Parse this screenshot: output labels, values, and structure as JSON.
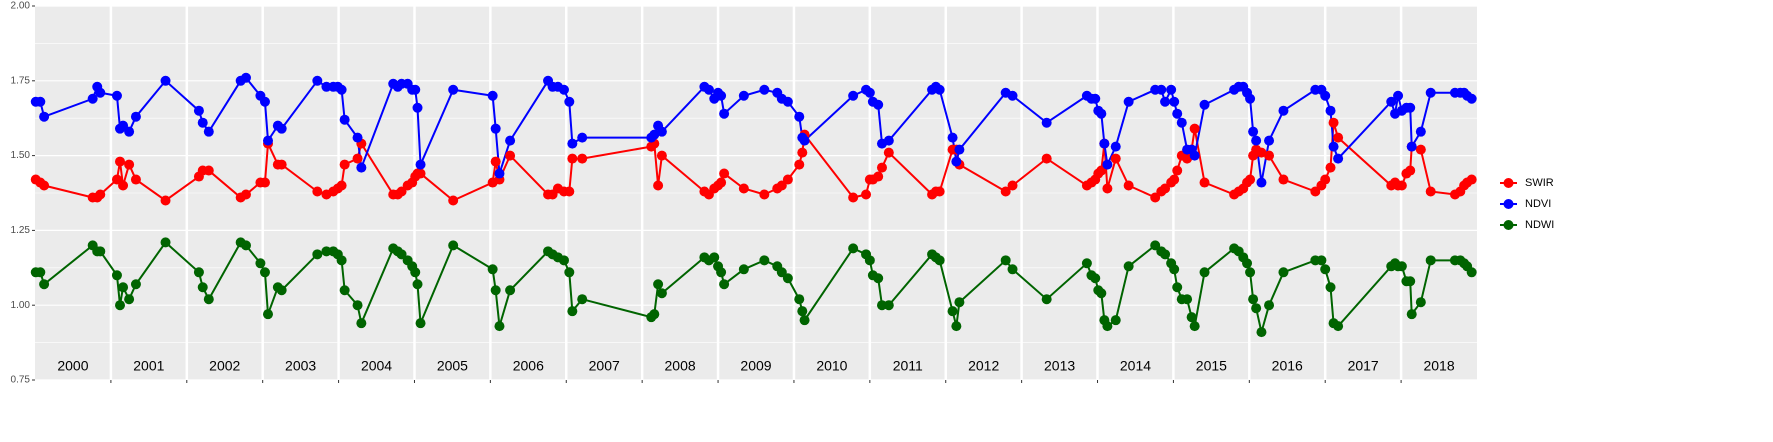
{
  "chart_data": {
    "type": "line",
    "x": [
      2000.01,
      2000.07,
      2000.12,
      2000.76,
      2000.82,
      2000.86,
      2001.08,
      2001.12,
      2001.16,
      2001.24,
      2001.33,
      2001.72,
      2002.16,
      2002.21,
      2002.29,
      2002.71,
      2002.78,
      2002.97,
      2003.03,
      2003.07,
      2003.2,
      2003.25,
      2003.72,
      2003.84,
      2003.93,
      2003.99,
      2004.04,
      2004.08,
      2004.25,
      2004.3,
      2004.72,
      2004.78,
      2004.83,
      2004.91,
      2004.97,
      2005.01,
      2005.04,
      2005.08,
      2005.51,
      2006.03,
      2006.07,
      2006.12,
      2006.26,
      2006.76,
      2006.82,
      2006.89,
      2006.97,
      2007.04,
      2007.08,
      2007.21,
      2008.12,
      2008.16,
      2008.21,
      2008.26,
      2008.82,
      2008.88,
      2008.95,
      2009.0,
      2009.04,
      2009.08,
      2009.34,
      2009.61,
      2009.78,
      2009.84,
      2009.92,
      2010.07,
      2010.11,
      2010.14,
      2010.78,
      2010.95,
      2011.0,
      2011.04,
      2011.11,
      2011.16,
      2011.25,
      2011.82,
      2011.87,
      2011.92,
      2012.09,
      2012.14,
      2012.18,
      2012.79,
      2012.88,
      2013.33,
      2013.86,
      2013.92,
      2013.97,
      2014.01,
      2014.05,
      2014.09,
      2014.13,
      2014.24,
      2014.41,
      2014.76,
      2014.84,
      2014.89,
      2014.97,
      2015.01,
      2015.05,
      2015.11,
      2015.18,
      2015.24,
      2015.28,
      2015.41,
      2015.8,
      2015.86,
      2015.92,
      2015.97,
      2016.01,
      2016.05,
      2016.09,
      2016.16,
      2016.26,
      2016.45,
      2016.87,
      2016.95,
      2017.0,
      2017.07,
      2017.11,
      2017.17,
      2017.87,
      2017.92,
      2017.96,
      2018.01,
      2018.07,
      2018.12,
      2018.14,
      2018.26,
      2018.39,
      2018.71,
      2018.78,
      2018.83,
      2018.87,
      2018.93
    ],
    "series": [
      {
        "name": "SWIR",
        "color": "#ff0000",
        "values": [
          1.42,
          1.41,
          1.4,
          1.36,
          1.36,
          1.37,
          1.42,
          1.48,
          1.4,
          1.47,
          1.42,
          1.35,
          1.43,
          1.45,
          1.45,
          1.36,
          1.37,
          1.41,
          1.41,
          1.54,
          1.47,
          1.47,
          1.38,
          1.37,
          1.38,
          1.39,
          1.4,
          1.47,
          1.49,
          1.54,
          1.37,
          1.37,
          1.38,
          1.4,
          1.41,
          1.43,
          1.44,
          1.44,
          1.35,
          1.41,
          1.48,
          1.42,
          1.5,
          1.37,
          1.37,
          1.39,
          1.38,
          1.38,
          1.49,
          1.49,
          1.53,
          1.54,
          1.4,
          1.5,
          1.38,
          1.37,
          1.39,
          1.4,
          1.41,
          1.44,
          1.39,
          1.37,
          1.39,
          1.4,
          1.42,
          1.47,
          1.51,
          1.57,
          1.36,
          1.37,
          1.42,
          1.42,
          1.43,
          1.46,
          1.51,
          1.37,
          1.38,
          1.38,
          1.52,
          1.52,
          1.47,
          1.38,
          1.4,
          1.49,
          1.4,
          1.41,
          1.42,
          1.44,
          1.45,
          1.54,
          1.39,
          1.49,
          1.4,
          1.36,
          1.38,
          1.39,
          1.41,
          1.42,
          1.45,
          1.5,
          1.49,
          1.52,
          1.59,
          1.41,
          1.37,
          1.38,
          1.39,
          1.41,
          1.42,
          1.5,
          1.52,
          1.51,
          1.5,
          1.42,
          1.38,
          1.4,
          1.42,
          1.46,
          1.61,
          1.56,
          1.4,
          1.41,
          1.4,
          1.4,
          1.44,
          1.45,
          1.53,
          1.52,
          1.38,
          1.37,
          1.38,
          1.4,
          1.41,
          1.42
        ]
      },
      {
        "name": "NDVI",
        "color": "#0000ff",
        "values": [
          1.68,
          1.68,
          1.63,
          1.69,
          1.73,
          1.71,
          1.7,
          1.59,
          1.6,
          1.58,
          1.63,
          1.75,
          1.65,
          1.61,
          1.58,
          1.75,
          1.76,
          1.7,
          1.68,
          1.55,
          1.6,
          1.59,
          1.75,
          1.73,
          1.73,
          1.73,
          1.72,
          1.62,
          1.56,
          1.46,
          1.74,
          1.73,
          1.74,
          1.74,
          1.72,
          1.72,
          1.66,
          1.47,
          1.72,
          1.7,
          1.59,
          1.44,
          1.55,
          1.75,
          1.73,
          1.73,
          1.72,
          1.68,
          1.54,
          1.56,
          1.56,
          1.57,
          1.6,
          1.58,
          1.73,
          1.72,
          1.69,
          1.71,
          1.7,
          1.64,
          1.7,
          1.72,
          1.71,
          1.69,
          1.68,
          1.63,
          1.56,
          1.55,
          1.7,
          1.72,
          1.71,
          1.68,
          1.67,
          1.54,
          1.55,
          1.72,
          1.73,
          1.72,
          1.56,
          1.48,
          1.52,
          1.71,
          1.7,
          1.61,
          1.7,
          1.69,
          1.69,
          1.65,
          1.64,
          1.54,
          1.47,
          1.53,
          1.68,
          1.72,
          1.72,
          1.68,
          1.72,
          1.68,
          1.64,
          1.61,
          1.52,
          1.52,
          1.5,
          1.67,
          1.72,
          1.73,
          1.73,
          1.71,
          1.69,
          1.58,
          1.55,
          1.41,
          1.55,
          1.65,
          1.72,
          1.72,
          1.7,
          1.65,
          1.53,
          1.49,
          1.68,
          1.64,
          1.7,
          1.65,
          1.66,
          1.66,
          1.53,
          1.58,
          1.71,
          1.71,
          1.71,
          1.71,
          1.7,
          1.69
        ]
      },
      {
        "name": "NDWI",
        "color": "#006400",
        "values": [
          1.11,
          1.11,
          1.07,
          1.2,
          1.18,
          1.18,
          1.1,
          1.0,
          1.06,
          1.02,
          1.07,
          1.21,
          1.11,
          1.06,
          1.02,
          1.21,
          1.2,
          1.14,
          1.11,
          0.97,
          1.06,
          1.05,
          1.17,
          1.18,
          1.18,
          1.17,
          1.15,
          1.05,
          1.0,
          0.94,
          1.19,
          1.18,
          1.17,
          1.15,
          1.13,
          1.11,
          1.07,
          0.94,
          1.2,
          1.12,
          1.05,
          0.93,
          1.05,
          1.18,
          1.17,
          1.16,
          1.15,
          1.11,
          0.98,
          1.02,
          0.96,
          0.97,
          1.07,
          1.04,
          1.16,
          1.15,
          1.16,
          1.13,
          1.11,
          1.07,
          1.12,
          1.15,
          1.13,
          1.11,
          1.09,
          1.02,
          0.98,
          0.95,
          1.19,
          1.17,
          1.15,
          1.1,
          1.09,
          1.0,
          1.0,
          1.17,
          1.16,
          1.15,
          0.98,
          0.93,
          1.01,
          1.15,
          1.12,
          1.02,
          1.14,
          1.1,
          1.09,
          1.05,
          1.04,
          0.95,
          0.93,
          0.95,
          1.13,
          1.2,
          1.18,
          1.17,
          1.14,
          1.12,
          1.06,
          1.02,
          1.02,
          0.96,
          0.93,
          1.11,
          1.19,
          1.18,
          1.16,
          1.14,
          1.11,
          1.02,
          0.99,
          0.91,
          1.0,
          1.11,
          1.15,
          1.15,
          1.12,
          1.06,
          0.94,
          0.93,
          1.13,
          1.14,
          1.13,
          1.13,
          1.08,
          1.08,
          0.97,
          1.01,
          1.15,
          1.15,
          1.15,
          1.14,
          1.13,
          1.11
        ]
      }
    ],
    "xlim": [
      2000,
      2019
    ],
    "xticks": [
      2001,
      2002,
      2003,
      2004,
      2005,
      2006,
      2007,
      2008,
      2009,
      2010,
      2011,
      2012,
      2013,
      2014,
      2015,
      2016,
      2017,
      2018
    ],
    "ylim": [
      0.75,
      2.0
    ],
    "yticks": [
      0.75,
      {
        "value": 1,
        "label": "1.00"
      },
      1.25,
      {
        "value": 1.5,
        "label": "1.50"
      },
      1.75,
      {
        "value": 2,
        "label": "2.00"
      }
    ],
    "grid": true,
    "legend": "right",
    "annotations": [
      {
        "x": 2000.5,
        "text": "2000"
      },
      {
        "x": 2001.5,
        "text": "2001"
      },
      {
        "x": 2002.5,
        "text": "2002"
      },
      {
        "x": 2003.5,
        "text": "2003"
      },
      {
        "x": 2004.5,
        "text": "2004"
      },
      {
        "x": 2005.5,
        "text": "2005"
      },
      {
        "x": 2006.5,
        "text": "2006"
      },
      {
        "x": 2007.5,
        "text": "2007"
      },
      {
        "x": 2008.5,
        "text": "2008"
      },
      {
        "x": 2009.5,
        "text": "2009"
      },
      {
        "x": 2010.5,
        "text": "2010"
      },
      {
        "x": 2011.5,
        "text": "2011"
      },
      {
        "x": 2012.5,
        "text": "2012"
      },
      {
        "x": 2013.5,
        "text": "2013"
      },
      {
        "x": 2014.5,
        "text": "2014"
      },
      {
        "x": 2015.5,
        "text": "2015"
      },
      {
        "x": 2016.5,
        "text": "2016"
      },
      {
        "x": 2017.5,
        "text": "2017"
      },
      {
        "x": 2018.5,
        "text": "2018"
      }
    ]
  }
}
